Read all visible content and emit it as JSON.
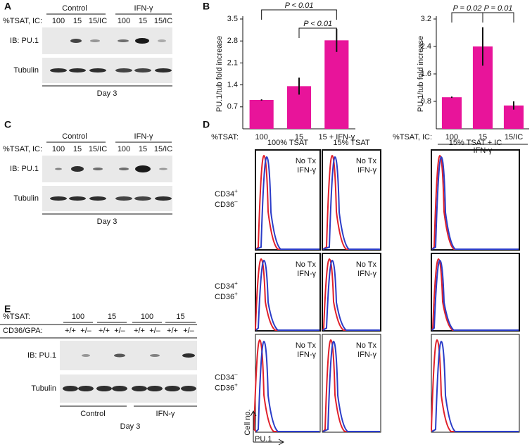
{
  "chart_data": [
    {
      "type": "bar",
      "y_label": "PU.1/tub fold increase",
      "x_label": "%TSAT:",
      "categories": [
        "100",
        "15",
        "15 + IFN-γ"
      ],
      "values": [
        0.92,
        1.36,
        2.82
      ],
      "errors": [
        0.02,
        0.27,
        0.37
      ],
      "color": "#e8149a",
      "ylim": [
        0,
        3.5
      ],
      "yticks": [
        0.7,
        1.4,
        2.1,
        2.8,
        3.5
      ],
      "annotations": [
        "P < 0.01",
        "P < 0.01"
      ]
    },
    {
      "type": "bar",
      "y_label": "PU.1/tub fold increase",
      "x_label": "%TSAT, IC:",
      "group_label": "IFN-γ",
      "categories": [
        "100",
        "15",
        "15/IC"
      ],
      "values": [
        0.92,
        2.4,
        0.68
      ],
      "errors": [
        0.02,
        0.56,
        0.12
      ],
      "color": "#e8149a",
      "ylim": [
        0,
        3.2
      ],
      "yticks": [
        0.8,
        1.6,
        2.4,
        3.2
      ],
      "annotations": [
        "P = 0.02",
        "P = 0.01"
      ]
    }
  ],
  "panel_a": {
    "label": "A",
    "groups": [
      "Control",
      "IFN-γ"
    ],
    "row_label": "%TSAT, IC:",
    "lanes": [
      "100",
      "15",
      "15/IC",
      "100",
      "15",
      "15/IC"
    ],
    "blots": [
      "IB: PU.1",
      "Tubulin"
    ],
    "footer": "Day 3"
  },
  "panel_b": {
    "label": "B"
  },
  "panel_c": {
    "label": "C",
    "groups": [
      "Control",
      "IFN-γ"
    ],
    "row_label": "%TSAT, IC:",
    "lanes": [
      "100",
      "15",
      "15/IC",
      "100",
      "15",
      "15/IC"
    ],
    "blots": [
      "IB: PU.1",
      "Tubulin"
    ],
    "footer": "Day 3"
  },
  "panel_d": {
    "label": "D",
    "columns": [
      "100% TSAT",
      "15% TSAT",
      "15% TSAT + IC"
    ],
    "rows": [
      {
        "m1": "CD34",
        "s1": "+",
        "m2": "CD36",
        "s2": "–"
      },
      {
        "m1": "CD34",
        "s1": "+",
        "m2": "CD36",
        "s2": "+"
      },
      {
        "m1": "CD34",
        "s1": "–",
        "m2": "CD36",
        "s2": "+"
      }
    ],
    "legend": [
      {
        "name": "No Tx",
        "color": "#e0202a"
      },
      {
        "name": "IFN-γ",
        "color": "#2a3cc8"
      }
    ],
    "y_axis": "Cell no.",
    "x_axis": "PU.1"
  },
  "panel_e": {
    "label": "E",
    "tsat_label": "%TSAT:",
    "tsat": [
      "100",
      "15",
      "100",
      "15"
    ],
    "geno_label": "CD36/GPA:",
    "geno": [
      "+/+",
      "+/–",
      "+/+",
      "+/–",
      "+/+",
      "+/–",
      "+/+",
      "+/–"
    ],
    "blots": [
      "IB: PU.1",
      "Tubulin"
    ],
    "groups": [
      "Control",
      "IFN-γ"
    ],
    "footer": "Day 3"
  }
}
